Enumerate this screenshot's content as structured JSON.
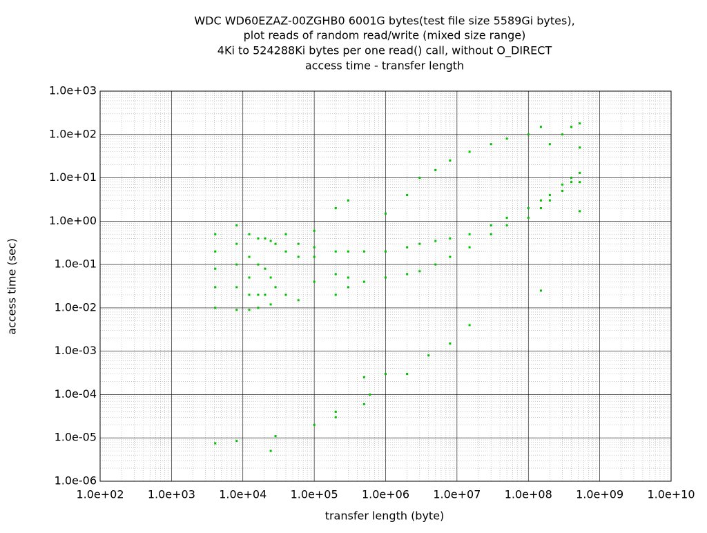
{
  "chart_data": {
    "type": "scatter",
    "title": [
      "WDC WD60EZAZ-00ZGHB0 6001G bytes(test file size 5589Gi bytes),",
      "plot reads of random read/write (mixed size range)",
      "4Ki to 524288Ki bytes per one read() call, without O_DIRECT",
      "access time - transfer length"
    ],
    "xlabel": "transfer length (byte)",
    "ylabel": "access time (sec)",
    "xscale": "log",
    "yscale": "log",
    "grid": true,
    "color": "#00c000",
    "xlim": [
      100,
      10000000000
    ],
    "ylim": [
      1e-06,
      1000
    ],
    "xticks": [
      {
        "value": 100,
        "label": "1.0e+02"
      },
      {
        "value": 1000,
        "label": "1.0e+03"
      },
      {
        "value": 10000,
        "label": "1.0e+04"
      },
      {
        "value": 100000,
        "label": "1.0e+05"
      },
      {
        "value": 1000000,
        "label": "1.0e+06"
      },
      {
        "value": 10000000,
        "label": "1.0e+07"
      },
      {
        "value": 100000000,
        "label": "1.0e+08"
      },
      {
        "value": 1000000000,
        "label": "1.0e+09"
      },
      {
        "value": 10000000000,
        "label": "1.0e+10"
      }
    ],
    "yticks": [
      {
        "value": 1e-06,
        "label": "1.0e-06"
      },
      {
        "value": 1e-05,
        "label": "1.0e-05"
      },
      {
        "value": 0.0001,
        "label": "1.0e-04"
      },
      {
        "value": 0.001,
        "label": "1.0e-03"
      },
      {
        "value": 0.01,
        "label": "1.0e-02"
      },
      {
        "value": 0.1,
        "label": "1.0e-01"
      },
      {
        "value": 1,
        "label": "1.0e+00"
      },
      {
        "value": 10,
        "label": "1.0e+01"
      },
      {
        "value": 100,
        "label": "1.0e+02"
      },
      {
        "value": 1000,
        "label": "1.0e+03"
      }
    ],
    "x": [
      4096,
      4096,
      4096,
      4096,
      4096,
      4096,
      8192,
      8192,
      8192,
      8192,
      8192,
      8192,
      12288,
      12288,
      12288,
      12288,
      12288,
      16384,
      16384,
      16384,
      16384,
      20480,
      20480,
      20480,
      24576,
      24576,
      24576,
      24576,
      28672,
      28672,
      28672,
      40000,
      40000,
      40000,
      60000,
      60000,
      60000,
      100000,
      100000,
      100000,
      100000,
      100000,
      200000,
      200000,
      200000,
      200000,
      200000,
      200000,
      300000,
      300000,
      300000,
      300000,
      500000,
      500000,
      500000,
      500000,
      600000,
      1000000,
      1000000,
      1000000,
      1000000,
      2000000,
      2000000,
      2000000,
      2000000,
      3000000,
      3000000,
      3000000,
      4000000,
      5000000,
      5000000,
      5000000,
      8000000,
      8000000,
      8000000,
      8000000,
      15000000,
      15000000,
      15000000,
      15000000,
      30000000,
      30000000,
      30000000,
      50000000,
      50000000,
      50000000,
      100000000,
      100000000,
      100000000,
      150000000,
      150000000,
      150000000,
      150000000,
      200000000,
      200000000,
      200000000,
      300000000,
      300000000,
      300000000,
      400000000,
      400000000,
      400000000,
      524000000,
      524000000,
      524000000,
      524000000,
      524000000
    ],
    "y": [
      0.5,
      0.2,
      0.08,
      0.03,
      0.01,
      7.5e-06,
      0.8,
      0.3,
      0.1,
      0.03,
      0.009,
      8.5e-06,
      0.5,
      0.15,
      0.05,
      0.02,
      0.009,
      0.4,
      0.1,
      0.02,
      0.01,
      0.4,
      0.08,
      0.02,
      0.35,
      0.05,
      0.012,
      5e-06,
      0.3,
      0.03,
      1.1e-05,
      0.5,
      0.2,
      0.02,
      0.3,
      0.15,
      0.015,
      0.25,
      0.6,
      0.04,
      0.15,
      2e-05,
      0.2,
      0.06,
      2,
      0.02,
      4e-05,
      3e-05,
      3,
      0.2,
      0.05,
      0.03,
      0.2,
      0.04,
      6e-05,
      0.00025,
      0.0001,
      0.2,
      0.05,
      1.5,
      0.0003,
      0.25,
      0.06,
      4,
      0.0003,
      0.3,
      0.07,
      10,
      0.0008,
      0.35,
      0.1,
      15,
      0.4,
      0.15,
      25,
      0.0015,
      0.5,
      0.25,
      40,
      0.004,
      0.8,
      0.5,
      60,
      1.2,
      0.8,
      80,
      2,
      1.2,
      100,
      3,
      2,
      0.025,
      150,
      4,
      3,
      60,
      7,
      5,
      100,
      10,
      8,
      150,
      13,
      8,
      50,
      1.7,
      180
    ]
  }
}
